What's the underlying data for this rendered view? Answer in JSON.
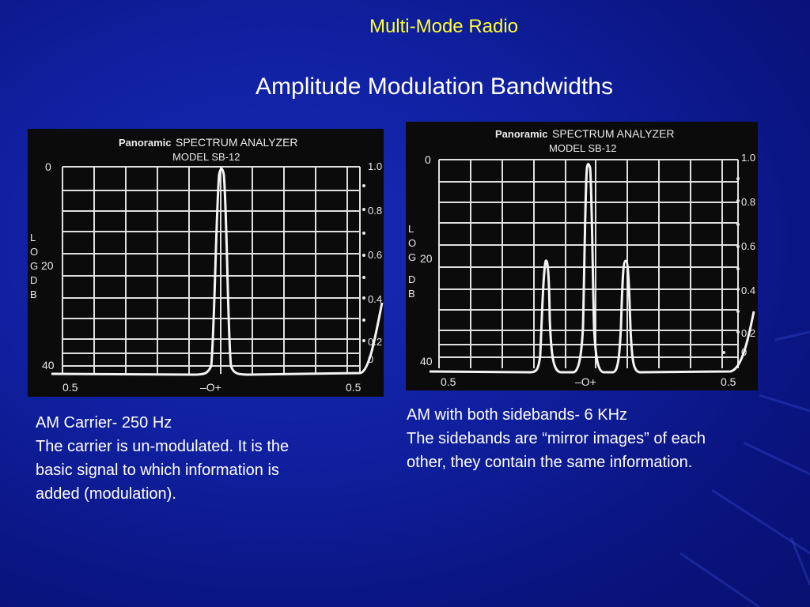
{
  "header": {
    "title": "Multi-Mode Radio"
  },
  "slide": {
    "title": "Amplitude Modulation Bandwidths"
  },
  "analyzer": {
    "brand": "Panoramic",
    "name": "SPECTRUM ANALYZER",
    "model": "MODEL SB-12",
    "log_label": [
      "L",
      "O",
      "G",
      "D",
      "B"
    ],
    "left_ticks": [
      "0",
      "20",
      "40"
    ],
    "right_ticks": [
      "1.0",
      "0.8",
      "0.6",
      "0.4",
      "0.2",
      "0"
    ],
    "bottom_left": "0.5",
    "bottom_center": "–O+",
    "bottom_right": "0.5"
  },
  "left_panel": {
    "caption": [
      "AM Carrier- 250 Hz",
      "The carrier is un-modulated. It is the",
      "basic signal to which information is",
      "added (modulation)."
    ]
  },
  "right_panel": {
    "caption": [
      "AM with both sidebands- 6 KHz",
      "The sidebands are “mirror images” of each",
      "other, they contain the same information."
    ]
  },
  "colors": {
    "header": "#ffff33",
    "title": "#ffffff",
    "trace": "#f4f4f4",
    "background": "#1020a0"
  }
}
